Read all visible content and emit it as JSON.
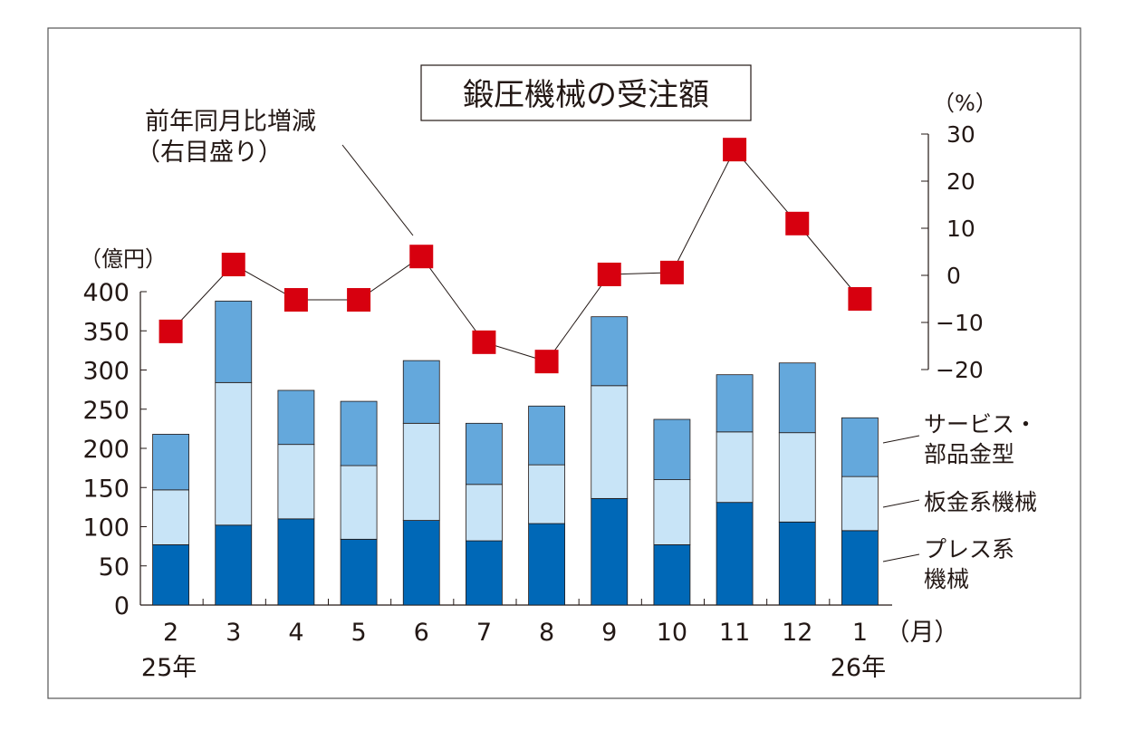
{
  "chart_data": {
    "type": "bar",
    "title": "鍛圧機械の受注額",
    "left_axis": {
      "unit_label": "（億円）",
      "ylim": [
        0,
        400
      ],
      "ticks": [
        0,
        50,
        100,
        150,
        200,
        250,
        300,
        350,
        400
      ]
    },
    "right_axis": {
      "unit_label": "（%）",
      "ylim": [
        -20,
        30
      ],
      "ticks": [
        -20,
        -10,
        0,
        10,
        20,
        30
      ]
    },
    "categories": [
      "2",
      "3",
      "4",
      "5",
      "6",
      "7",
      "8",
      "9",
      "10",
      "11",
      "12",
      "1"
    ],
    "x_unit_label": "（月）",
    "year_labels": [
      {
        "index": 0,
        "text": "25年"
      },
      {
        "index": 11,
        "text": "26年"
      }
    ],
    "series": [
      {
        "name": "プレス系機械",
        "label_lines": [
          "プレス系",
          "機械"
        ],
        "color": "#0068b7",
        "values": [
          77,
          102,
          110,
          84,
          108,
          82,
          104,
          136,
          77,
          131,
          106,
          95
        ]
      },
      {
        "name": "板金系機械",
        "label_lines": [
          "板金系機械"
        ],
        "color": "#c8e4f7",
        "values": [
          70,
          182,
          95,
          94,
          124,
          72,
          75,
          144,
          83,
          90,
          114,
          69
        ]
      },
      {
        "name": "サービス・部品金型",
        "label_lines": [
          "サービス・",
          "部品金型"
        ],
        "color": "#64a8dc",
        "values": [
          71,
          104,
          69,
          82,
          80,
          78,
          75,
          88,
          77,
          73,
          89,
          75
        ]
      }
    ],
    "line_series": {
      "name": "前年同月比増減（右目盛り）",
      "label_lines": [
        "前年同月比増減",
        "（右目盛り）"
      ],
      "color": "#d7000f",
      "values": [
        -11.9,
        2.3,
        -5.2,
        -5.2,
        4.0,
        -14.2,
        -18.3,
        0.2,
        0.6,
        26.7,
        11.0,
        -5.0
      ]
    }
  }
}
